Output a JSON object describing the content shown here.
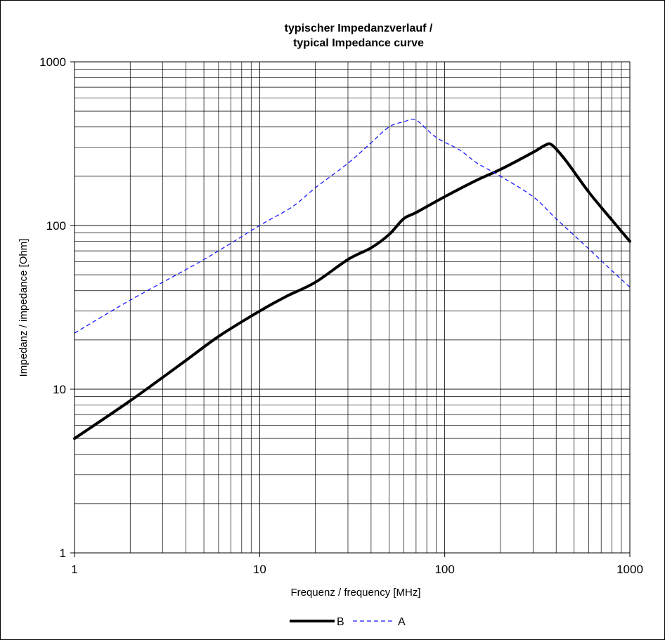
{
  "chart_data": {
    "type": "line",
    "title_line1": "typischer Impedanzverlauf /",
    "title_line2": "typical Impedance curve",
    "xlabel": "Frequenz / frequency [MHz]",
    "ylabel": "Impedanz / impedance [Ohm]",
    "x_scale": "log",
    "y_scale": "log",
    "xlim": [
      1,
      1000
    ],
    "ylim": [
      1,
      1000
    ],
    "x_ticks": [
      {
        "value": 1,
        "label": "1"
      },
      {
        "value": 10,
        "label": "10"
      },
      {
        "value": 100,
        "label": "100"
      },
      {
        "value": 1000,
        "label": "1000"
      }
    ],
    "y_ticks": [
      {
        "value": 1,
        "label": "1"
      },
      {
        "value": 10,
        "label": "10"
      },
      {
        "value": 100,
        "label": "100"
      },
      {
        "value": 1000,
        "label": "1000"
      }
    ],
    "grid": true,
    "legend_position": "bottom",
    "series": [
      {
        "name": "B",
        "color": "#000000",
        "style": "solid",
        "points": [
          [
            1,
            5
          ],
          [
            2,
            8.5
          ],
          [
            4,
            15
          ],
          [
            6,
            21
          ],
          [
            10,
            30
          ],
          [
            14,
            37
          ],
          [
            20,
            45
          ],
          [
            30,
            62
          ],
          [
            40,
            73
          ],
          [
            50,
            88
          ],
          [
            60,
            110
          ],
          [
            70,
            120
          ],
          [
            100,
            150
          ],
          [
            150,
            190
          ],
          [
            200,
            220
          ],
          [
            300,
            280
          ],
          [
            350,
            310
          ],
          [
            380,
            310
          ],
          [
            450,
            250
          ],
          [
            600,
            160
          ],
          [
            800,
            108
          ],
          [
            1000,
            80
          ]
        ]
      },
      {
        "name": "A",
        "color": "#1a1aff",
        "style": "dashed",
        "points": [
          [
            1,
            22
          ],
          [
            2,
            35
          ],
          [
            5,
            62
          ],
          [
            10,
            100
          ],
          [
            15,
            130
          ],
          [
            20,
            170
          ],
          [
            30,
            240
          ],
          [
            40,
            320
          ],
          [
            50,
            400
          ],
          [
            60,
            430
          ],
          [
            70,
            440
          ],
          [
            90,
            345
          ],
          [
            120,
            290
          ],
          [
            150,
            240
          ],
          [
            200,
            200
          ],
          [
            300,
            150
          ],
          [
            400,
            110
          ],
          [
            600,
            72
          ],
          [
            800,
            53
          ],
          [
            1000,
            42
          ]
        ]
      }
    ]
  }
}
